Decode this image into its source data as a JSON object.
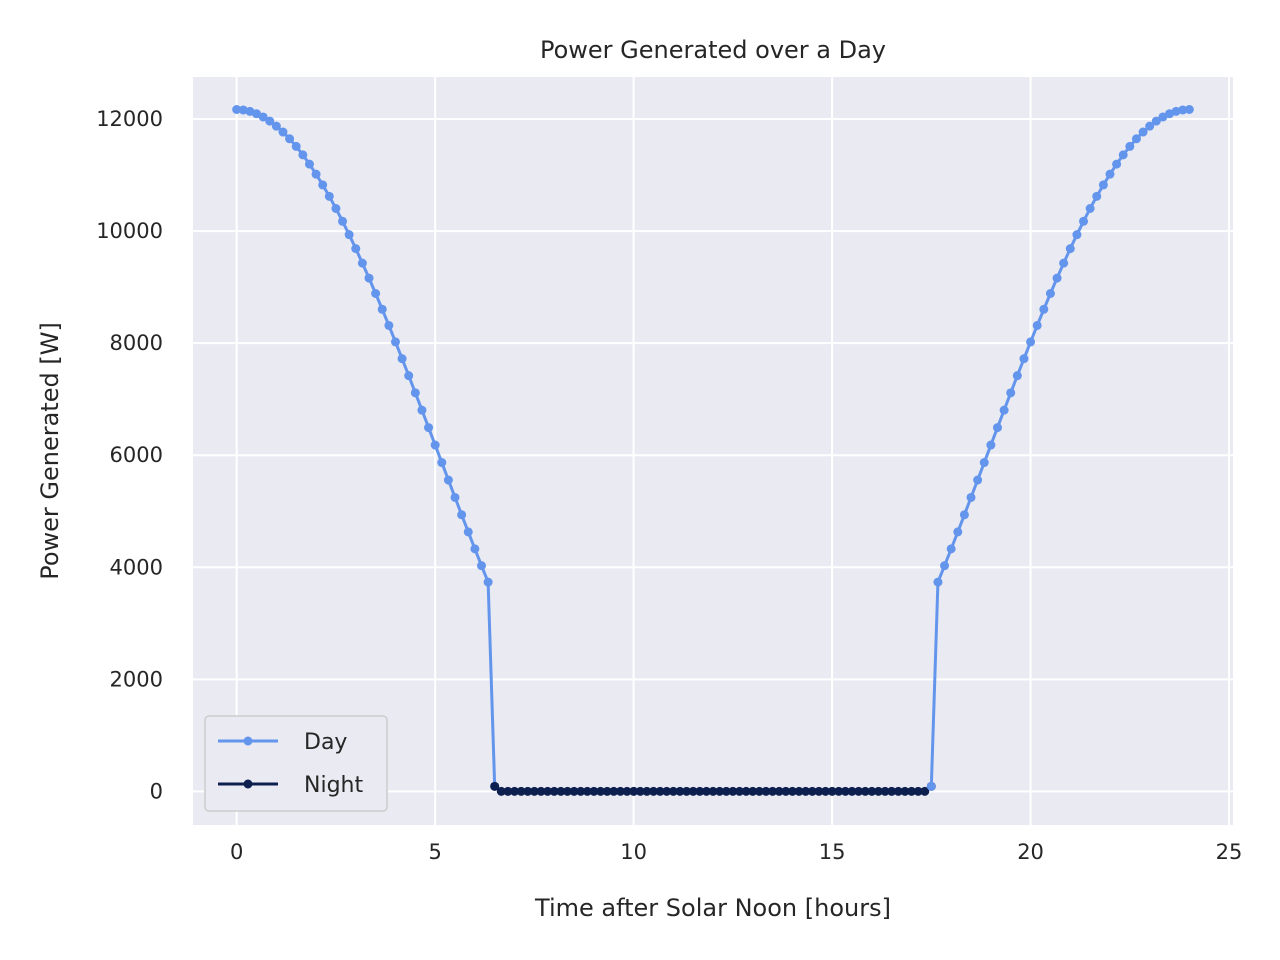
{
  "chart_data": {
    "type": "line",
    "title": "Power Generated over a Day",
    "xlabel": "Time after Solar Noon [hours]",
    "ylabel": "Power Generated [W]",
    "xlim": [
      -1.1,
      25.1
    ],
    "ylim": [
      -600,
      12750
    ],
    "xticks": [
      0,
      5,
      10,
      15,
      20,
      25
    ],
    "xtick_labels": [
      "0",
      "5",
      "10",
      "15",
      "20",
      "25"
    ],
    "yticks": [
      0,
      2000,
      4000,
      6000,
      8000,
      10000,
      12000
    ],
    "ytick_labels": [
      "0",
      "2000",
      "4000",
      "6000",
      "8000",
      "10000",
      "12000"
    ],
    "grid": true,
    "background": "#eaeaf2",
    "legend_position": "lower-left",
    "x_step_hours": 0.1667,
    "peak_power": 12170,
    "series": [
      {
        "name": "Day",
        "color": "#6495ed",
        "x_start": 0,
        "x_end": 6.5,
        "x_step": 0.1667,
        "values": [
          12170,
          12162,
          12137,
          12095,
          12037,
          11963,
          11873,
          11768,
          11647,
          11511,
          11360,
          11195,
          11016,
          10824,
          10620,
          10403,
          10175,
          9936,
          9687,
          9428,
          9161,
          8886,
          8604,
          8316,
          8022,
          7723,
          7420,
          7113,
          6804,
          6493,
          6181,
          5869,
          5557,
          5246,
          4937,
          4631,
          4328,
          4029,
          3735,
          90
        ]
      },
      {
        "name": "Night",
        "color": "#0d1f4f",
        "x_start": 6.5,
        "x_end": 17.5,
        "x_step": 0.1667,
        "values": [
          90,
          0,
          0,
          0,
          0,
          0,
          0,
          0,
          0,
          0,
          0,
          0,
          0,
          0,
          0,
          0,
          0,
          0,
          0,
          0,
          0,
          0,
          0,
          0,
          0,
          0,
          0,
          0,
          0,
          0,
          0,
          0,
          0,
          0,
          0,
          0,
          0,
          0,
          0,
          0,
          0,
          0,
          0,
          0,
          0,
          0,
          0,
          0,
          0,
          0,
          0,
          0,
          0,
          0,
          0,
          0,
          0,
          0,
          0,
          0,
          0,
          0,
          0,
          0,
          0,
          0,
          90
        ]
      },
      {
        "name": "Day",
        "color": "#6495ed",
        "x_start": 17.5,
        "x_end": 24,
        "x_step": 0.1667,
        "values": [
          90,
          3735,
          4029,
          4328,
          4631,
          4937,
          5246,
          5557,
          5869,
          6181,
          6493,
          6804,
          7113,
          7420,
          7723,
          8022,
          8316,
          8604,
          8886,
          9161,
          9428,
          9687,
          9936,
          10175,
          10403,
          10620,
          10824,
          11016,
          11195,
          11360,
          11511,
          11647,
          11768,
          11873,
          11963,
          12037,
          12095,
          12137,
          12162,
          12170
        ]
      }
    ],
    "legend": [
      {
        "label": "Day",
        "color": "#6495ed"
      },
      {
        "label": "Night",
        "color": "#0d1f4f"
      }
    ]
  }
}
